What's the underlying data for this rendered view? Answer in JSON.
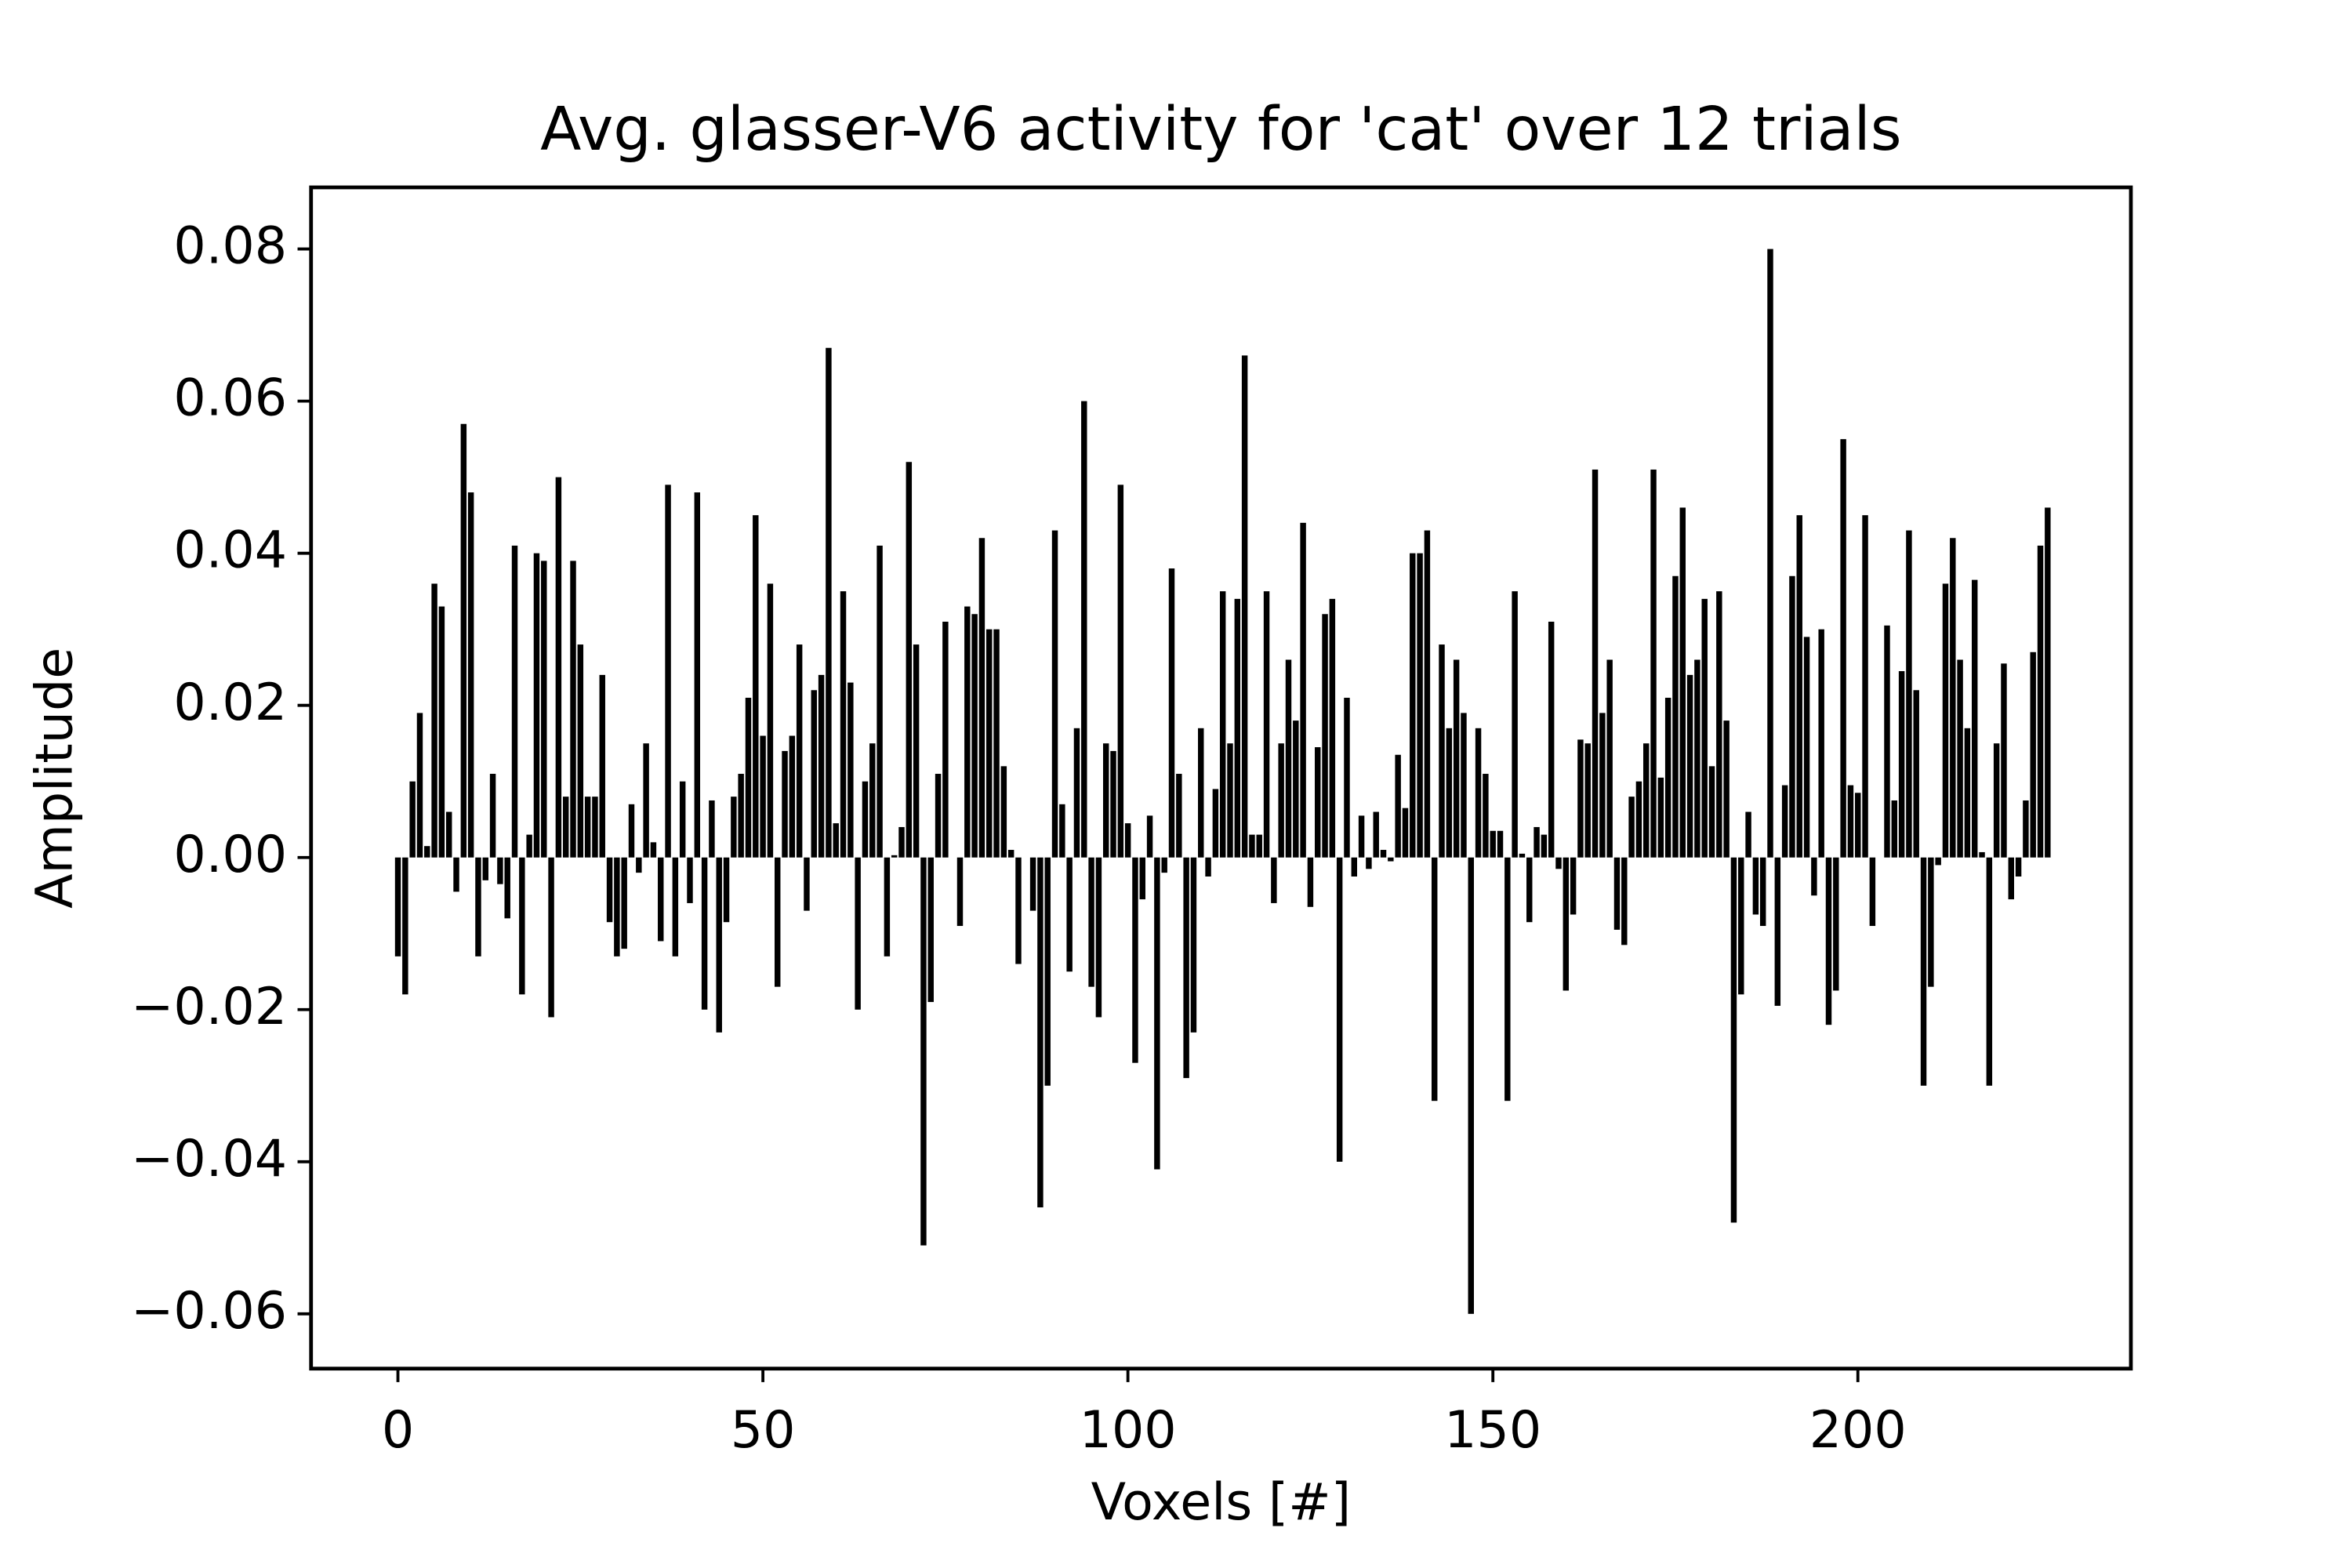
{
  "chart_data": {
    "type": "bar",
    "title": "Avg. glasser-V6 activity for 'cat' over 12 trials",
    "xlabel": "Voxels [#]",
    "ylabel": "Amplitude",
    "color": "#000000",
    "x": [
      0,
      1,
      2,
      3,
      4,
      5,
      6,
      7,
      8,
      9,
      10,
      11,
      12,
      13,
      14,
      15,
      16,
      17,
      18,
      19,
      20,
      21,
      22,
      23,
      24,
      25,
      26,
      27,
      28,
      29,
      30,
      31,
      32,
      33,
      34,
      35,
      36,
      37,
      38,
      39,
      40,
      41,
      42,
      43,
      44,
      45,
      46,
      47,
      48,
      49,
      50,
      51,
      52,
      53,
      54,
      55,
      56,
      57,
      58,
      59,
      60,
      61,
      62,
      63,
      64,
      65,
      66,
      67,
      68,
      69,
      70,
      71,
      72,
      73,
      74,
      75,
      76,
      77,
      78,
      79,
      80,
      81,
      82,
      83,
      84,
      85,
      86,
      87,
      88,
      89,
      90,
      91,
      92,
      93,
      94,
      95,
      96,
      97,
      98,
      99,
      100,
      101,
      102,
      103,
      104,
      105,
      106,
      107,
      108,
      109,
      110,
      111,
      112,
      113,
      114,
      115,
      116,
      117,
      118,
      119,
      120,
      121,
      122,
      123,
      124,
      125,
      126,
      127,
      128,
      129,
      130,
      131,
      132,
      133,
      134,
      135,
      136,
      137,
      138,
      139,
      140,
      141,
      142,
      143,
      144,
      145,
      146,
      147,
      148,
      149,
      150,
      151,
      152,
      153,
      154,
      155,
      156,
      157,
      158,
      159,
      160,
      161,
      162,
      163,
      164,
      165,
      166,
      167,
      168,
      169,
      170,
      171,
      172,
      173,
      174,
      175,
      176,
      177,
      178,
      179,
      180,
      181,
      182,
      183,
      184,
      185,
      186,
      187,
      188,
      189,
      190,
      191,
      192,
      193,
      194,
      195,
      196,
      197,
      198,
      199,
      200,
      201,
      202,
      203,
      204,
      205,
      206,
      207,
      208,
      209,
      210,
      211,
      212,
      213,
      214,
      215,
      216,
      217,
      218,
      219,
      220,
      221,
      222,
      223,
      224,
      225,
      226
    ],
    "values": [
      -0.013,
      -0.018,
      0.01,
      0.019,
      0.0015,
      0.036,
      0.033,
      0.006,
      -0.0045,
      0.057,
      0.048,
      -0.013,
      -0.003,
      0.011,
      -0.0035,
      -0.008,
      0.041,
      -0.018,
      0.003,
      0.04,
      0.039,
      -0.021,
      0.05,
      0.008,
      0.039,
      0.028,
      0.008,
      0.008,
      0.024,
      -0.0085,
      -0.013,
      -0.012,
      0.007,
      -0.002,
      0.015,
      0.002,
      -0.011,
      0.049,
      -0.013,
      0.01,
      -0.006,
      0.048,
      -0.02,
      0.0075,
      -0.023,
      -0.0085,
      0.008,
      0.011,
      0.021,
      0.045,
      0.016,
      0.036,
      -0.017,
      0.014,
      0.016,
      0.028,
      -0.007,
      0.022,
      0.024,
      0.067,
      0.0045,
      0.035,
      0.023,
      -0.02,
      0.01,
      0.015,
      0.041,
      -0.013,
      0.0003,
      0.004,
      0.052,
      0.028,
      -0.051,
      -0.019,
      0.011,
      0.031,
      0,
      -0.009,
      0.033,
      0.032,
      0.042,
      0.03,
      0.03,
      0.012,
      0.001,
      -0.014,
      0,
      -0.007,
      -0.046,
      -0.03,
      0.043,
      0.007,
      -0.015,
      0.017,
      0.06,
      -0.017,
      -0.021,
      0.015,
      0.014,
      0.049,
      0.0045,
      -0.027,
      -0.0055,
      0.0055,
      -0.041,
      -0.002,
      0.038,
      0.011,
      -0.029,
      -0.023,
      0.017,
      -0.0025,
      0.009,
      0.035,
      0.015,
      0.034,
      0.066,
      0.003,
      0.003,
      0.035,
      -0.006,
      0.015,
      0.026,
      0.018,
      0.044,
      -0.0065,
      0.0145,
      0.032,
      0.034,
      -0.04,
      0.021,
      -0.0025,
      0.0055,
      -0.0015,
      0.006,
      0.001,
      -0.0005,
      0.0135,
      0.0065,
      0.04,
      0.04,
      0.043,
      -0.032,
      0.028,
      0.017,
      0.026,
      0.019,
      -0.06,
      0.017,
      0.011,
      0.0035,
      0.0035,
      -0.032,
      0.035,
      0.0005,
      -0.0085,
      0.004,
      0.003,
      0.031,
      -0.0015,
      -0.0175,
      -0.0075,
      0.0155,
      0.015,
      0.051,
      0.019,
      0.026,
      -0.0095,
      -0.0115,
      0.008,
      0.01,
      0.015,
      0.051,
      0.0105,
      0.021,
      0.037,
      0.046,
      0.024,
      0.026,
      0.034,
      0.012,
      0.035,
      0.018,
      -0.048,
      -0.018,
      0.006,
      -0.0075,
      -0.009,
      0.08,
      -0.0195,
      0.0095,
      0.037,
      0.045,
      0.029,
      -0.005,
      0.03,
      -0.022,
      -0.0175,
      0.055,
      0.0095,
      0.0085,
      0.045,
      -0.009,
      0,
      0.0305,
      0.0075,
      0.0245,
      0.043,
      0.022,
      -0.03,
      -0.017,
      -0.001,
      0.036,
      0.042,
      0.026,
      0.017,
      0.0365,
      0.0007,
      -0.03,
      0.015,
      0.0255,
      -0.0055,
      -0.0025,
      0.0075,
      0.027,
      0.041,
      0.046
    ],
    "xlim": [
      -11.9,
      237.4
    ],
    "xticks": [
      0,
      50,
      100,
      150,
      200
    ],
    "ylim": [
      -0.0672,
      0.0881
    ],
    "yticks": [
      {
        "value": -0.06,
        "label": "−0.06"
      },
      {
        "value": -0.04,
        "label": "−0.04"
      },
      {
        "value": -0.02,
        "label": "−0.02"
      },
      {
        "value": 0,
        "label": "0.00"
      },
      {
        "value": 0.02,
        "label": "0.02"
      },
      {
        "value": 0.04,
        "label": "0.04"
      },
      {
        "value": 0.06,
        "label": "0.06"
      },
      {
        "value": 0.08,
        "label": "0.08"
      }
    ]
  }
}
